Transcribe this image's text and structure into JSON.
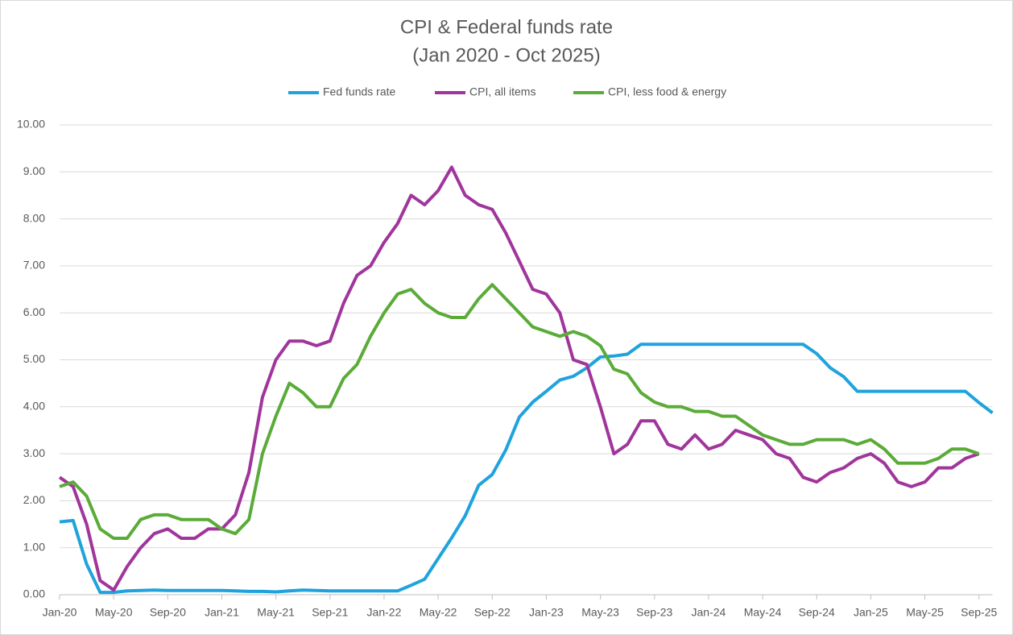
{
  "chart_data": {
    "type": "line",
    "title": "CPI & Federal funds rate",
    "subtitle": "(Jan 2020 - Oct 2025)",
    "categories": [
      "Jan-20",
      null,
      null,
      null,
      "May-20",
      null,
      null,
      null,
      "Sep-20",
      null,
      null,
      null,
      "Jan-21",
      null,
      null,
      null,
      "May-21",
      null,
      null,
      null,
      "Sep-21",
      null,
      null,
      null,
      "Jan-22",
      null,
      null,
      null,
      "May-22",
      null,
      null,
      null,
      "Sep-22",
      null,
      null,
      null,
      "Jan-23",
      null,
      null,
      null,
      "May-23",
      null,
      null,
      null,
      "Sep-23",
      null,
      null,
      null,
      "Jan-24",
      null,
      null,
      null,
      "May-24",
      null,
      null,
      null,
      "Sep-24",
      null,
      null,
      null,
      "Jan-25",
      null,
      null,
      null,
      "May-25",
      null,
      null,
      null,
      "Sep-25",
      null
    ],
    "series": [
      {
        "name": "Fed funds rate",
        "color": "#1fa3dc",
        "values": [
          1.55,
          1.58,
          0.65,
          0.05,
          0.05,
          0.08,
          0.09,
          0.1,
          0.09,
          0.09,
          0.09,
          0.09,
          0.09,
          0.08,
          0.07,
          0.07,
          0.06,
          0.08,
          0.1,
          0.09,
          0.08,
          0.08,
          0.08,
          0.08,
          0.08,
          0.08,
          0.2,
          0.33,
          0.77,
          1.21,
          1.68,
          2.33,
          2.56,
          3.08,
          3.78,
          4.1,
          4.33,
          4.57,
          4.65,
          4.83,
          5.06,
          5.08,
          5.12,
          5.33,
          5.33,
          5.33,
          5.33,
          5.33,
          5.33,
          5.33,
          5.33,
          5.33,
          5.33,
          5.33,
          5.33,
          5.33,
          5.13,
          4.83,
          4.64,
          4.33,
          4.33,
          4.33,
          4.33,
          4.33,
          4.33,
          4.33,
          4.33,
          4.33,
          4.09,
          3.87
        ]
      },
      {
        "name": "CPI, all items",
        "color": "#a0359b",
        "values": [
          2.5,
          2.3,
          1.5,
          0.3,
          0.1,
          0.6,
          1.0,
          1.3,
          1.4,
          1.2,
          1.2,
          1.4,
          1.4,
          1.7,
          2.6,
          4.2,
          5.0,
          5.4,
          5.4,
          5.3,
          5.4,
          6.2,
          6.8,
          7.0,
          7.5,
          7.9,
          8.5,
          8.3,
          8.6,
          9.1,
          8.5,
          8.3,
          8.2,
          7.7,
          7.1,
          6.5,
          6.4,
          6.0,
          5.0,
          4.9,
          4.0,
          3.0,
          3.2,
          3.7,
          3.7,
          3.2,
          3.1,
          3.4,
          3.1,
          3.2,
          3.5,
          3.4,
          3.3,
          3.0,
          2.9,
          2.5,
          2.4,
          2.6,
          2.7,
          2.9,
          3.0,
          2.8,
          2.4,
          2.3,
          2.4,
          2.7,
          2.7,
          2.9,
          3.0,
          null
        ]
      },
      {
        "name": "CPI, less food & energy",
        "color": "#5aab38",
        "values": [
          2.3,
          2.4,
          2.1,
          1.4,
          1.2,
          1.2,
          1.6,
          1.7,
          1.7,
          1.6,
          1.6,
          1.6,
          1.4,
          1.3,
          1.6,
          3.0,
          3.8,
          4.5,
          4.3,
          4.0,
          4.0,
          4.6,
          4.9,
          5.5,
          6.0,
          6.4,
          6.5,
          6.2,
          6.0,
          5.9,
          5.9,
          6.3,
          6.6,
          6.3,
          6.0,
          5.7,
          5.6,
          5.5,
          5.6,
          5.5,
          5.3,
          4.8,
          4.7,
          4.3,
          4.1,
          4.0,
          4.0,
          3.9,
          3.9,
          3.8,
          3.8,
          3.6,
          3.4,
          3.3,
          3.2,
          3.2,
          3.3,
          3.3,
          3.3,
          3.2,
          3.3,
          3.1,
          2.8,
          2.8,
          2.8,
          2.9,
          3.1,
          3.1,
          3.0,
          null
        ]
      }
    ],
    "ylim": [
      0,
      10
    ],
    "yticks": [
      {
        "value": 0,
        "label": "0.00"
      },
      {
        "value": 1,
        "label": "1.00"
      },
      {
        "value": 2,
        "label": "2.00"
      },
      {
        "value": 3,
        "label": "3.00"
      },
      {
        "value": 4,
        "label": "4.00"
      },
      {
        "value": 5,
        "label": "5.00"
      },
      {
        "value": 6,
        "label": "6.00"
      },
      {
        "value": 7,
        "label": "7.00"
      },
      {
        "value": 8,
        "label": "8.00"
      },
      {
        "value": 9,
        "label": "9.00"
      },
      {
        "value": 10,
        "label": "10.00"
      }
    ],
    "grid": true,
    "legend": "top"
  }
}
